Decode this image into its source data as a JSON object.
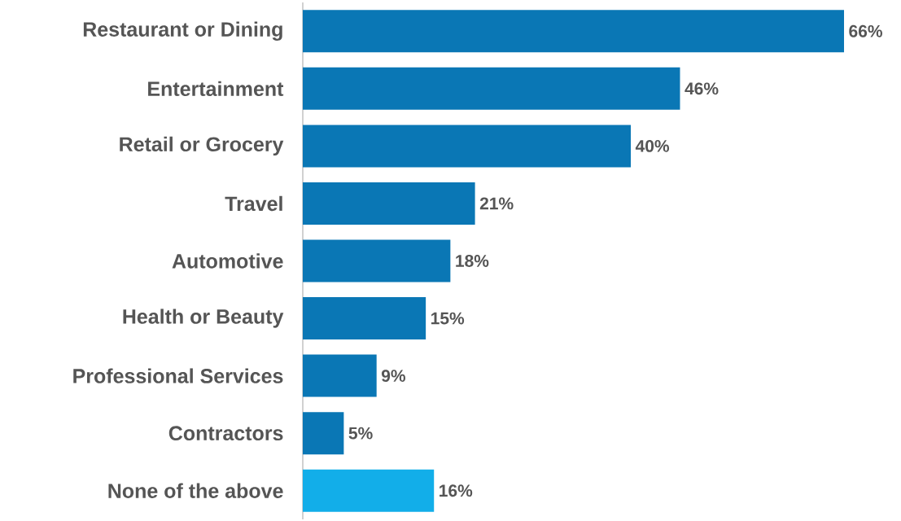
{
  "chart_data": {
    "type": "bar",
    "orientation": "horizontal",
    "categories": [
      "Restaurant or Dining",
      "Entertainment",
      "Retail or Grocery",
      "Travel",
      "Automotive",
      "Health or Beauty",
      "Professional Services",
      "Contractors",
      "None of the above"
    ],
    "values": [
      66,
      46,
      40,
      21,
      18,
      15,
      9,
      5,
      16
    ],
    "value_labels": [
      "66%",
      "46%",
      "40%",
      "21%",
      "18%",
      "15%",
      "9%",
      "5%",
      "16%"
    ],
    "colors": [
      "#0a77b5",
      "#0a77b5",
      "#0a77b5",
      "#0a77b5",
      "#0a77b5",
      "#0a77b5",
      "#0a77b5",
      "#0a77b5",
      "#12aee9"
    ]
  }
}
